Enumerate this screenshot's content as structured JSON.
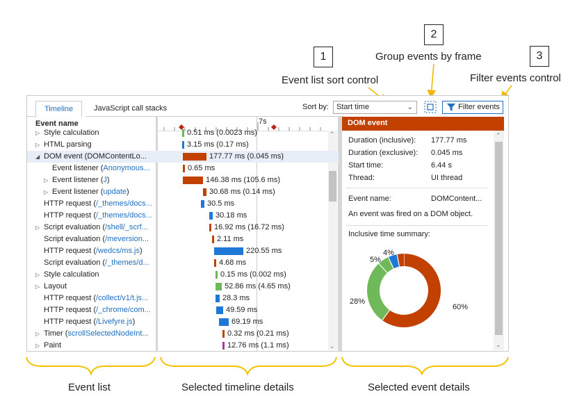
{
  "callouts": [
    {
      "num": "1",
      "label": "Event list sort control"
    },
    {
      "num": "2",
      "label": "Group events by frame"
    },
    {
      "num": "3",
      "label": "Filter events control"
    }
  ],
  "tabs": [
    {
      "label": "Timeline"
    },
    {
      "label": "JavaScript call stacks"
    }
  ],
  "sort": {
    "label": "Sort by:",
    "value": "Start time"
  },
  "filter_label": "Filter events",
  "list_header": "Event name",
  "ruler_label": "7s",
  "events": [
    {
      "name": "Style calculation",
      "link": "",
      "expand": true,
      "indent": 0,
      "duration": "0.51 ms (0.0023 ms)",
      "color": "#6fb95a",
      "x": 36,
      "w": 3
    },
    {
      "name": "HTML parsing",
      "link": "",
      "expand": true,
      "indent": 0,
      "duration": "3.15 ms (0.17 ms)",
      "color": "#1e78d8",
      "x": 36,
      "w": 3
    },
    {
      "name": "DOM event (DOMContentLo...",
      "link": "",
      "expand": true,
      "indent": 0,
      "duration": "177.77 ms (0.045 ms)",
      "color": "#c24000",
      "x": 37,
      "w": 34,
      "selected": true,
      "expanded": true
    },
    {
      "name": "Event listener (",
      "link": "Anonymous...",
      "expand": false,
      "indent": 1,
      "duration": "0.65 ms",
      "color": "#c24000",
      "x": 37,
      "w": 3
    },
    {
      "name": "Event listener (",
      "link": "J",
      "suffix": ")",
      "expand": true,
      "indent": 1,
      "duration": "146.38 ms (105.6 ms)",
      "color": "#c24000",
      "x": 37,
      "w": 29
    },
    {
      "name": "Event listener (",
      "link": "update",
      "suffix": ")",
      "expand": true,
      "indent": 1,
      "duration": "30.68 ms (0.14 ms)",
      "color": "#c24000",
      "x": 66,
      "w": 5
    },
    {
      "name": "HTTP request (",
      "link": "/_themes/docs...",
      "expand": false,
      "indent": 0,
      "duration": "30.5 ms",
      "color": "#1e78d8",
      "x": 63,
      "w": 5
    },
    {
      "name": "HTTP request (",
      "link": "/_themes/docs...",
      "expand": false,
      "indent": 0,
      "duration": "30.18 ms",
      "color": "#1e78d8",
      "x": 75,
      "w": 5
    },
    {
      "name": "Script evaluation (",
      "link": "/shell/_scrf...",
      "expand": true,
      "indent": 0,
      "duration": "16.92 ms (16.72 ms)",
      "color": "#c24000",
      "x": 75,
      "w": 3
    },
    {
      "name": "Script evaluation (",
      "link": "/meversion...",
      "expand": false,
      "indent": 0,
      "duration": "2.11 ms",
      "color": "#c24000",
      "x": 79,
      "w": 3
    },
    {
      "name": "HTTP request (",
      "link": "/wedcs/ms.js",
      "suffix": ")",
      "expand": false,
      "indent": 0,
      "duration": "220.55 ms",
      "color": "#1e78d8",
      "x": 82,
      "w": 42
    },
    {
      "name": "Script evaluation (",
      "link": "/_themes/d...",
      "expand": false,
      "indent": 0,
      "duration": "4.68 ms",
      "color": "#c24000",
      "x": 82,
      "w": 3
    },
    {
      "name": "Style calculation",
      "link": "",
      "expand": true,
      "indent": 0,
      "duration": "0.15 ms (0.002 ms)",
      "color": "#6fb95a",
      "x": 84,
      "w": 3
    },
    {
      "name": "Layout",
      "link": "",
      "expand": true,
      "indent": 0,
      "duration": "52.86 ms (4.65 ms)",
      "color": "#6fb95a",
      "x": 84,
      "w": 9
    },
    {
      "name": "HTTP request (",
      "link": "/collect/v1/t.js...",
      "expand": false,
      "indent": 0,
      "duration": "28.3 ms",
      "color": "#1e78d8",
      "x": 84,
      "w": 6
    },
    {
      "name": "HTTP request (",
      "link": "/_chrome/com...",
      "expand": false,
      "indent": 0,
      "duration": "49.59 ms",
      "color": "#1e78d8",
      "x": 85,
      "w": 10
    },
    {
      "name": "HTTP request (",
      "link": "/Livefyre.js",
      "suffix": ")",
      "expand": false,
      "indent": 0,
      "duration": "69.19 ms",
      "color": "#1e78d8",
      "x": 89,
      "w": 14
    },
    {
      "name": "Timer (",
      "link": "scrollSelectedNodeInt...",
      "expand": true,
      "indent": 0,
      "duration": "0.32 ms (0.21 ms)",
      "color": "#c24000",
      "x": 94,
      "w": 3
    },
    {
      "name": "Paint",
      "link": "",
      "expand": true,
      "indent": 0,
      "duration": "12.76 ms (1.1 ms)",
      "color": "#9e3ca3",
      "x": 94,
      "w": 3
    }
  ],
  "details": {
    "title": "DOM event",
    "fields": [
      {
        "k": "Duration (inclusive):",
        "v": "177.77 ms"
      },
      {
        "k": "Duration (exclusive):",
        "v": "0.045 ms"
      },
      {
        "k": "Start time:",
        "v": "6.44 s"
      },
      {
        "k": "Thread:",
        "v": "UI thread"
      }
    ],
    "event_name_key": "Event name:",
    "event_name_val": "DOMContent...",
    "description": "An event was fired on a DOM object.",
    "summary_label": "Inclusive time summary:",
    "donut": [
      {
        "label": "60%",
        "value": 60,
        "color": "#c24000"
      },
      {
        "label": "28%",
        "value": 28,
        "color": "#6fb95a"
      },
      {
        "label": "5%",
        "value": 5,
        "color": "#6fb95a"
      },
      {
        "label": "4%",
        "value": 4,
        "color": "#1e78d8"
      },
      {
        "label": "",
        "value": 3,
        "color": "#c24000"
      }
    ]
  },
  "regions": [
    {
      "label": "Event list"
    },
    {
      "label": "Selected timeline details"
    },
    {
      "label": "Selected event details"
    }
  ],
  "colors": {
    "accent": "#1e6fbf",
    "header": "#c24000",
    "bracket": "#f2c100"
  }
}
